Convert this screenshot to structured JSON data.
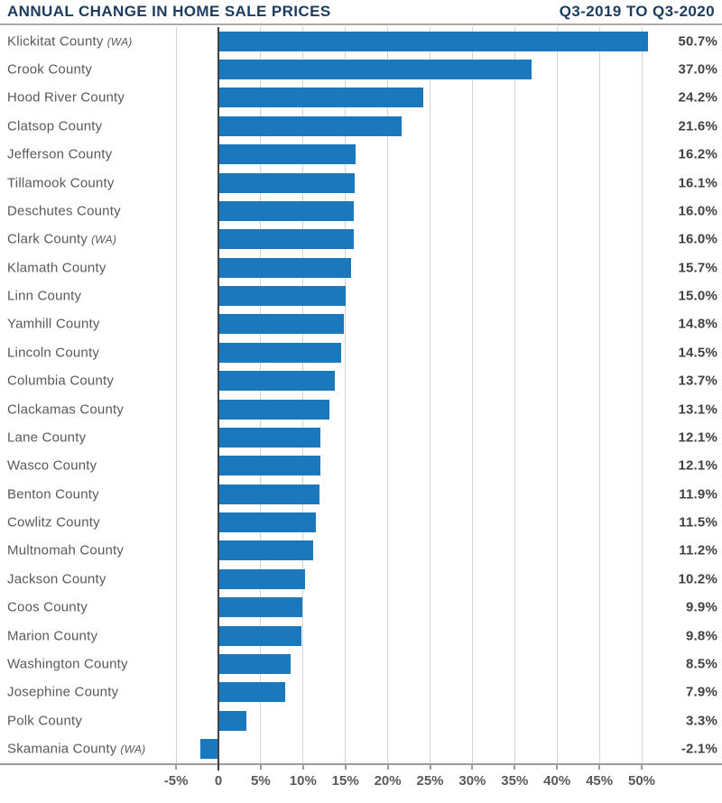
{
  "header": {
    "title": "ANNUAL CHANGE IN HOME SALE PRICES",
    "period": "Q3-2019 TO Q3-2020"
  },
  "colors": {
    "bar": "#1b78bd",
    "title": "#1b3c5f",
    "label": "#58595b",
    "value": "#414042",
    "gridline": "#d1d3d4",
    "zero_line": "#414042",
    "axis_line": "#9a9c9e"
  },
  "chart_data": {
    "type": "bar",
    "orientation": "horizontal",
    "title": "ANNUAL CHANGE IN HOME SALE PRICES",
    "subtitle": "Q3-2019 TO Q3-2020",
    "grid": true,
    "xlim": [
      -5,
      55
    ],
    "x_tick_values": [
      -5,
      0,
      5,
      10,
      15,
      20,
      25,
      30,
      35,
      40,
      45,
      50
    ],
    "x_tick_labels": [
      "-5%",
      "0",
      "5%",
      "10%",
      "15%",
      "20%",
      "25%",
      "30%",
      "35%",
      "40%",
      "45%",
      "50%"
    ],
    "categories": [
      "Klickitat County",
      "Crook County",
      "Hood River County",
      "Clatsop County",
      "Jefferson County",
      "Tillamook County",
      "Deschutes County",
      "Clark County",
      "Klamath County",
      "Linn County",
      "Yamhill County",
      "Lincoln County",
      "Columbia County",
      "Clackamas County",
      "Lane County",
      "Wasco County",
      "Benton County",
      "Cowlitz County",
      "Multnomah County",
      "Jackson County",
      "Coos County",
      "Marion County",
      "Washington County",
      "Josephine County",
      "Polk County",
      "Skamania County"
    ],
    "category_notes": [
      "(WA)",
      "",
      "",
      "",
      "",
      "",
      "",
      "(WA)",
      "",
      "",
      "",
      "",
      "",
      "",
      "",
      "",
      "",
      "",
      "",
      "",
      "",
      "",
      "",
      "",
      "",
      "(WA)"
    ],
    "values": [
      50.7,
      37.0,
      24.2,
      21.6,
      16.2,
      16.1,
      16.0,
      16.0,
      15.7,
      15.0,
      14.8,
      14.5,
      13.7,
      13.1,
      12.1,
      12.1,
      11.9,
      11.5,
      11.2,
      10.2,
      9.9,
      9.8,
      8.5,
      7.9,
      3.3,
      -2.1
    ],
    "value_labels": [
      "50.7%",
      "37.0%",
      "24.2%",
      "21.6%",
      "16.2%",
      "16.1%",
      "16.0%",
      "16.0%",
      "15.7%",
      "15.0%",
      "14.8%",
      "14.5%",
      "13.7%",
      "13.1%",
      "12.1%",
      "12.1%",
      "11.9%",
      "11.5%",
      "11.2%",
      "10.2%",
      "9.9%",
      "9.8%",
      "8.5%",
      "7.9%",
      "3.3%",
      "-2.1%"
    ]
  }
}
